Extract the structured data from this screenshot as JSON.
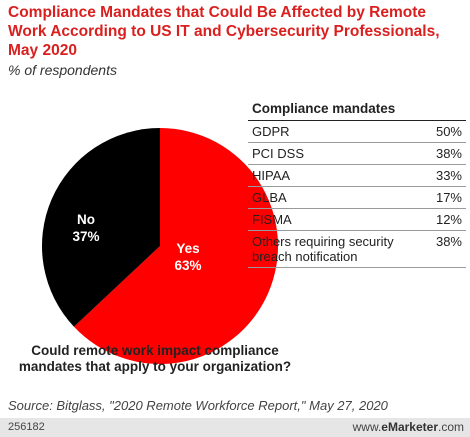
{
  "title": "Compliance Mandates that Could Be Affected by Remote Work According to US IT and Cybersecurity Professionals, May 2020",
  "subtitle": "% of respondents",
  "pie": {
    "question": "Could remote work impact compliance mandates that apply to your organization?",
    "slices": [
      {
        "label": "Yes",
        "value": 63,
        "display": "63%",
        "color": "#ff0000"
      },
      {
        "label": "No",
        "value": 37,
        "display": "37%",
        "color": "#000000"
      }
    ]
  },
  "table": {
    "header": "Compliance mandates",
    "rows": [
      {
        "name": "GDPR",
        "value": "50%"
      },
      {
        "name": "PCI DSS",
        "value": "38%"
      },
      {
        "name": "HIPAA",
        "value": "33%"
      },
      {
        "name": "GLBA",
        "value": "17%"
      },
      {
        "name": "FISMA",
        "value": "12%"
      },
      {
        "name": "Others requiring security breach notification",
        "value": "38%"
      }
    ]
  },
  "source": "Source: Bitglass, \"2020 Remote Workforce Report,\" May 27, 2020",
  "footer": {
    "id": "256182",
    "brand_prefix": "www.",
    "brand_name": "eMarketer",
    "brand_suffix": ".com"
  },
  "chart_data": [
    {
      "type": "pie",
      "title": "Could remote work impact compliance mandates that apply to your organization?",
      "categories": [
        "Yes",
        "No"
      ],
      "values": [
        63,
        37
      ],
      "colors": [
        "#ff0000",
        "#000000"
      ]
    },
    {
      "type": "table",
      "title": "Compliance mandates",
      "categories": [
        "GDPR",
        "PCI DSS",
        "HIPAA",
        "GLBA",
        "FISMA",
        "Others requiring security breach notification"
      ],
      "values": [
        50,
        38,
        33,
        17,
        12,
        38
      ]
    }
  ]
}
